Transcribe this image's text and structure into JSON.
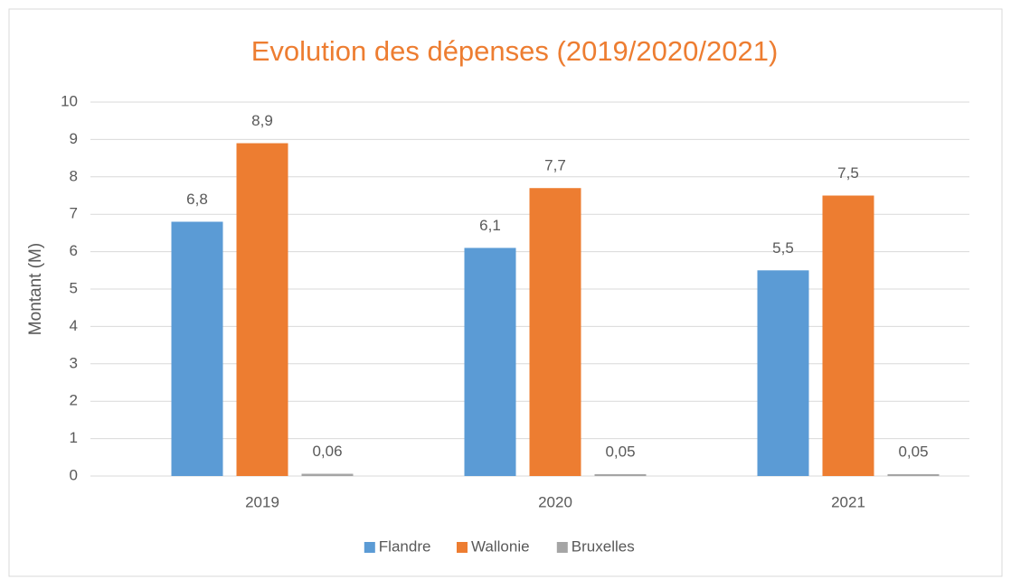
{
  "chart_data": {
    "type": "bar",
    "title": "Evolution des dépenses (2019/2020/2021)",
    "y_label": "Montant (M)",
    "categories": [
      "2019",
      "2020",
      "2021"
    ],
    "series": [
      {
        "name": "Flandre",
        "color": "#5B9BD5",
        "values": [
          6.8,
          6.1,
          5.5
        ],
        "value_labels": [
          "6,8",
          "6,1",
          "5,5"
        ]
      },
      {
        "name": "Wallonie",
        "color": "#ED7D31",
        "values": [
          8.9,
          7.7,
          7.5
        ],
        "value_labels": [
          "8,9",
          "7,7",
          "7,5"
        ]
      },
      {
        "name": "Bruxelles",
        "color": "#A5A5A5",
        "values": [
          0.06,
          0.05,
          0.05
        ],
        "value_labels": [
          "0,06",
          "0,05",
          "0,05"
        ]
      }
    ],
    "ylim": [
      0,
      10
    ],
    "yticks": [
      0,
      1,
      2,
      3,
      4,
      5,
      6,
      7,
      8,
      9,
      10
    ],
    "grid": true,
    "legend": "bottom"
  }
}
